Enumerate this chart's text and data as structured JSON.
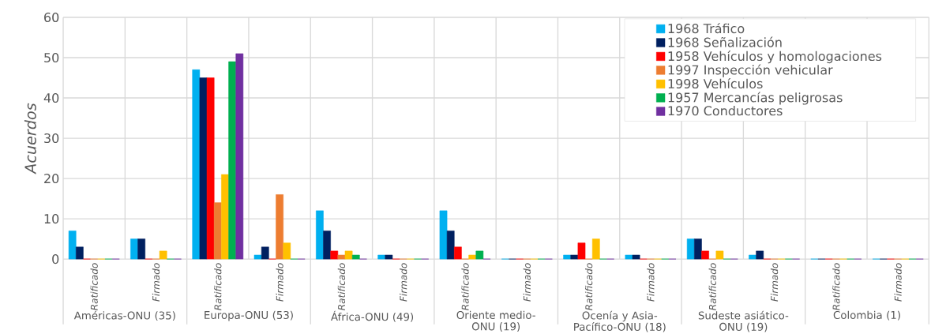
{
  "chart_data": {
    "type": "bar",
    "ylabel": "Acuerdos",
    "categories": [
      "Ratificado",
      "Firmado",
      "Ratificado",
      "Firmado",
      "Ratificado",
      "Firmado",
      "Ratificado",
      "Firmado",
      "Ratificado",
      "Firmado",
      "Ratificado",
      "Firmado",
      "Ratificado",
      "Firmado"
    ],
    "series": [
      {
        "name": "1968 Tráfico",
        "color": "#00b0f0",
        "values": [
          7,
          5,
          47,
          1,
          12,
          1,
          12,
          0,
          1,
          1,
          5,
          1,
          0,
          0
        ]
      },
      {
        "name": "1968 Señalización",
        "color": "#002060",
        "values": [
          3,
          5,
          45,
          3,
          7,
          1,
          7,
          0,
          1,
          1,
          5,
          2,
          0,
          0
        ]
      },
      {
        "name": "1958 Vehículos y homologaciones",
        "color": "#ff0000",
        "values": [
          0,
          0,
          45,
          0,
          2,
          0,
          3,
          0,
          4,
          0,
          2,
          0,
          0,
          0
        ]
      },
      {
        "name": "1997 Inspección vehicular",
        "color": "#ed7d31",
        "values": [
          0,
          0,
          14,
          16,
          1,
          0,
          0,
          0,
          0,
          0,
          0,
          0,
          0,
          0
        ]
      },
      {
        "name": "1998 Vehículos",
        "color": "#ffc000",
        "values": [
          0,
          2,
          21,
          4,
          2,
          0,
          1,
          0,
          5,
          0,
          2,
          0,
          0,
          0
        ]
      },
      {
        "name": "1957 Mercancías peligrosas",
        "color": "#00b050",
        "values": [
          0,
          0,
          49,
          0,
          1,
          0,
          2,
          0,
          0,
          0,
          0,
          0,
          0,
          0
        ]
      },
      {
        "name": "1970 Conductores",
        "color": "#7030a0",
        "values": [
          0,
          0,
          51,
          0,
          0,
          0,
          0,
          0,
          0,
          0,
          0,
          0,
          0,
          0
        ]
      }
    ],
    "ylim": [
      0,
      60
    ],
    "yticks": [
      0,
      10,
      20,
      30,
      40,
      50,
      60
    ],
    "grid": true,
    "legend": "top right",
    "annotations": [
      "Américas-ONU (35)",
      "Europa-ONU (53)",
      "África-ONU (49)",
      "Oriente medio-ONU (19)",
      "Ocenía y Asia-Pacífico-ONU (18)",
      "Sudeste asiático-ONU (19)",
      "Colombia (1)"
    ]
  }
}
